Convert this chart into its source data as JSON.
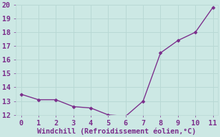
{
  "x": [
    0,
    1,
    2,
    3,
    4,
    5,
    6,
    7,
    8,
    9,
    10,
    11
  ],
  "y": [
    13.5,
    13.1,
    13.1,
    12.6,
    12.5,
    12.0,
    11.9,
    13.0,
    16.5,
    17.4,
    18.0,
    19.8
  ],
  "line_color": "#7b2d8b",
  "marker": "D",
  "marker_size": 2.5,
  "xlabel": "Windchill (Refroidissement éolien,°C)",
  "xlabel_color": "#7b2d8b",
  "ylim": [
    12,
    20
  ],
  "xlim": [
    -0.3,
    11.3
  ],
  "yticks": [
    12,
    13,
    14,
    15,
    16,
    17,
    18,
    19,
    20
  ],
  "xticks": [
    0,
    1,
    2,
    3,
    4,
    5,
    6,
    7,
    8,
    9,
    10,
    11
  ],
  "grid_color": "#b8d8d4",
  "background_color": "#cce8e4",
  "tick_color": "#7b2d8b",
  "tick_labelsize": 7.5,
  "xlabel_fontsize": 7.5,
  "linewidth": 1.0
}
